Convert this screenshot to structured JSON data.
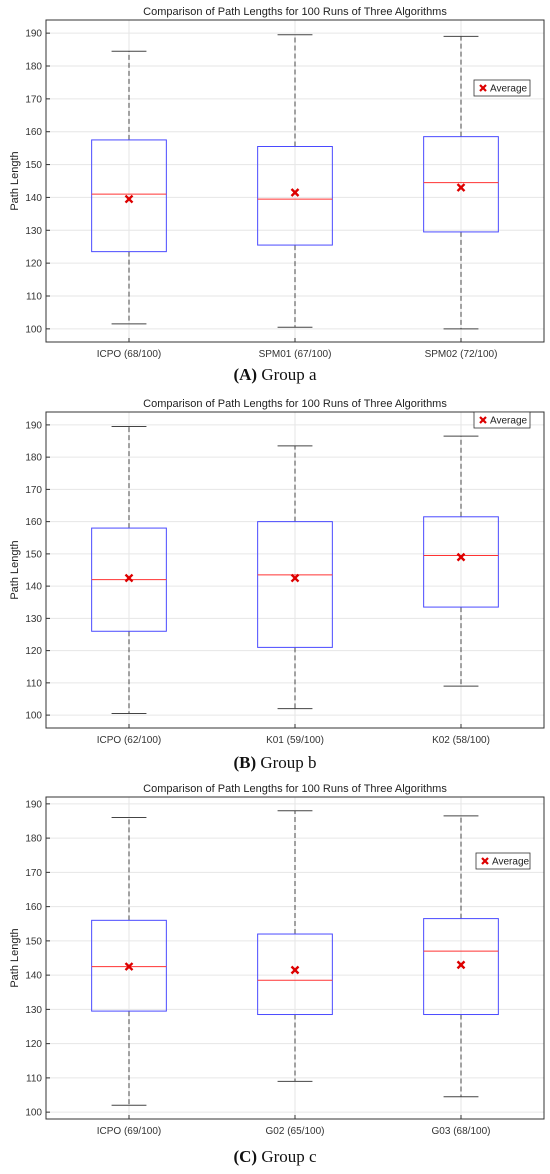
{
  "chart_data": [
    {
      "type": "box",
      "title": "Comparison of Path Lengths for 100 Runs of Three Algorithms",
      "ylabel": "Path Length",
      "ylim": [
        96,
        194
      ],
      "yticks": [
        100,
        110,
        120,
        130,
        140,
        150,
        160,
        170,
        180,
        190
      ],
      "grid": true,
      "legend": {
        "label": "Average",
        "position": "top-right"
      },
      "caption_letter": "(A)",
      "caption_text": " Group a",
      "categories": [
        "ICPO (68/100)",
        "SPM01 (67/100)",
        "SPM02 (72/100)"
      ],
      "boxes": [
        {
          "min": 101.5,
          "q1": 123.5,
          "median": 141,
          "q3": 157.5,
          "max": 184.5,
          "mean": 139.5
        },
        {
          "min": 100.5,
          "q1": 125.5,
          "median": 139.5,
          "q3": 155.5,
          "max": 189.5,
          "mean": 141.5
        },
        {
          "min": 100.0,
          "q1": 129.5,
          "median": 144.5,
          "q3": 158.5,
          "max": 189.0,
          "mean": 143.0
        }
      ]
    },
    {
      "type": "box",
      "title": "Comparison of Path Lengths for 100 Runs of Three Algorithms",
      "ylabel": "Path Length",
      "ylim": [
        96,
        194
      ],
      "yticks": [
        100,
        110,
        120,
        130,
        140,
        150,
        160,
        170,
        180,
        190
      ],
      "grid": true,
      "legend": {
        "label": "Average",
        "position": "top-right"
      },
      "caption_letter": "(B)",
      "caption_text": " Group b",
      "categories": [
        "ICPO (62/100)",
        "K01 (59/100)",
        "K02 (58/100)"
      ],
      "boxes": [
        {
          "min": 100.5,
          "q1": 126,
          "median": 142,
          "q3": 158,
          "max": 189.5,
          "mean": 142.5
        },
        {
          "min": 102.0,
          "q1": 121,
          "median": 143.5,
          "q3": 160,
          "max": 183.5,
          "mean": 142.5
        },
        {
          "min": 109.0,
          "q1": 133.5,
          "median": 149.5,
          "q3": 161.5,
          "max": 186.5,
          "mean": 149.0
        }
      ]
    },
    {
      "type": "box",
      "title": "Comparison of Path Lengths for 100 Runs of Three Algorithms",
      "ylabel": "Path Length",
      "ylim": [
        98,
        192
      ],
      "yticks": [
        100,
        110,
        120,
        130,
        140,
        150,
        160,
        170,
        180,
        190
      ],
      "grid": true,
      "legend": {
        "label": "Average",
        "position": "top-right"
      },
      "caption_letter": "(C)",
      "caption_text": " Group c",
      "categories": [
        "ICPO (69/100)",
        "G02 (65/100)",
        "G03 (68/100)"
      ],
      "boxes": [
        {
          "min": 102.0,
          "q1": 129.5,
          "median": 142.5,
          "q3": 156,
          "max": 186,
          "mean": 142.5
        },
        {
          "min": 109.0,
          "q1": 128.5,
          "median": 138.5,
          "q3": 152,
          "max": 188,
          "mean": 141.5
        },
        {
          "min": 104.5,
          "q1": 128.5,
          "median": 147.0,
          "q3": 156.5,
          "max": 186.5,
          "mean": 143.0
        }
      ]
    }
  ],
  "colors": {
    "box": "#4a4aff",
    "median": "#ff3333",
    "mean": "#dd0000",
    "whisker": "#444444",
    "grid": "#e6e6e6",
    "axis": "#333333"
  }
}
